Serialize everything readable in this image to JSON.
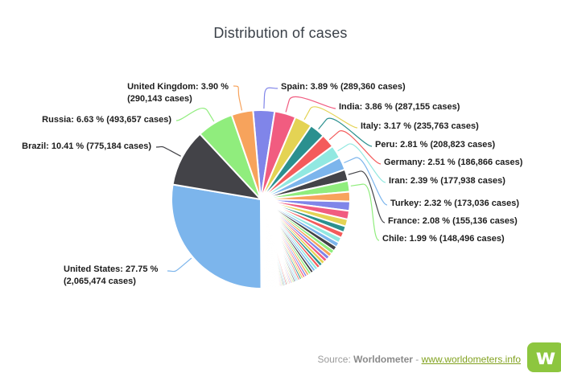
{
  "title": "Distribution of cases",
  "footer": {
    "source_prefix": "Source:",
    "source_name": "Worldometer",
    "separator": " - ",
    "link_text": "www.worldometers.info",
    "logo_glyph": "w"
  },
  "colors": {
    "palette": [
      "#7cb5ec",
      "#434348",
      "#90ed7d",
      "#f7a35c",
      "#8085e9",
      "#f15c80",
      "#e4d354",
      "#2b908f",
      "#f45b5b",
      "#91e8e1"
    ],
    "title_text": "#3a4048",
    "label_text": "#1c1c1c",
    "source_text": "#9b9b9b",
    "source_name": "#8a8a8a",
    "link": "#82a220",
    "logo_bg": "#8dc63f",
    "slice_border": "#ffffff",
    "background": "#ffffff"
  },
  "chart_data": {
    "type": "pie",
    "title": "Distribution of cases",
    "legend_position": "none",
    "direction": "clockwise",
    "start_angle_deg": -5,
    "label_format": "<name>: <pct> % (<cases> cases)",
    "slices": [
      {
        "name": "Spain",
        "pct": 3.89,
        "cases": "289,360",
        "color_index": 4,
        "label": "Spain: 3.89 % (289,360 cases)"
      },
      {
        "name": "India",
        "pct": 3.86,
        "cases": "287,155",
        "color_index": 5,
        "label": "India: 3.86 % (287,155 cases)"
      },
      {
        "name": "Italy",
        "pct": 3.17,
        "cases": "235,763",
        "color_index": 6,
        "label": "Italy: 3.17 % (235,763 cases)"
      },
      {
        "name": "Peru",
        "pct": 2.81,
        "cases": "208,823",
        "color_index": 7,
        "label": "Peru: 2.81 % (208,823 cases)"
      },
      {
        "name": "Germany",
        "pct": 2.51,
        "cases": "186,866",
        "color_index": 8,
        "label": "Germany: 2.51 % (186,866 cases)"
      },
      {
        "name": "Iran",
        "pct": 2.39,
        "cases": "177,938",
        "color_index": 9,
        "label": "Iran: 2.39 % (177,938 cases)"
      },
      {
        "name": "Turkey",
        "pct": 2.32,
        "cases": "173,036",
        "color_index": 0,
        "label": "Turkey: 2.32 % (173,036 cases)"
      },
      {
        "name": "France",
        "pct": 2.08,
        "cases": "155,136",
        "color_index": 1,
        "label": "France: 2.08 % (155,136 cases)"
      },
      {
        "name": "Chile",
        "pct": 1.99,
        "cases": "148,496",
        "color_index": 2,
        "label": "Chile: 1.99 % (148,496 cases)"
      },
      {
        "name": "United States",
        "pct": 27.75,
        "cases": "2,065,474",
        "color_index": 0,
        "label_lines": [
          "United States: 27.75 %",
          "(2,065,474 cases)"
        ]
      },
      {
        "name": "Brazil",
        "pct": 10.41,
        "cases": "775,184",
        "color_index": 1,
        "label": "Brazil: 10.41 % (775,184 cases)"
      },
      {
        "name": "Russia",
        "pct": 6.63,
        "cases": "493,657",
        "color_index": 2,
        "label": "Russia: 6.63 % (493,657 cases)"
      },
      {
        "name": "United Kingdom",
        "pct": 3.9,
        "cases": "290,143",
        "color_index": 3,
        "label_lines": [
          "United Kingdom: 3.90 %",
          "(290,143 cases)"
        ]
      }
    ],
    "others_unlabeled_pct": [
      1.74,
      1.69,
      1.56,
      1.31,
      1.12,
      1.05,
      1.03,
      0.8,
      0.79,
      0.71,
      0.65,
      0.64,
      0.6,
      0.59,
      0.56,
      0.53,
      0.51,
      0.48,
      0.47,
      0.46,
      0.42,
      0.39,
      0.37,
      0.35,
      0.34,
      0.31,
      0.29,
      0.27,
      0.26,
      0.25,
      0.24,
      0.23,
      0.22,
      0.21,
      0.2,
      0.19,
      0.18,
      0.17,
      0.16,
      0.155,
      0.15,
      0.14,
      0.13,
      0.125,
      0.12,
      0.11,
      0.105,
      0.1,
      0.095,
      0.09,
      0.088,
      0.086,
      0.084,
      0.082,
      0.08,
      0.078,
      0.076,
      0.074,
      0.072,
      0.07,
      0.068,
      0.066,
      0.064,
      0.062,
      0.06,
      0.058,
      0.056,
      0.054,
      0.052,
      0.05,
      0.048,
      0.046,
      0.044,
      0.042,
      0.04,
      0.038,
      0.036,
      0.034,
      0.032,
      0.03,
      0.028,
      0.026,
      0.024,
      0.022,
      0.02
    ]
  }
}
